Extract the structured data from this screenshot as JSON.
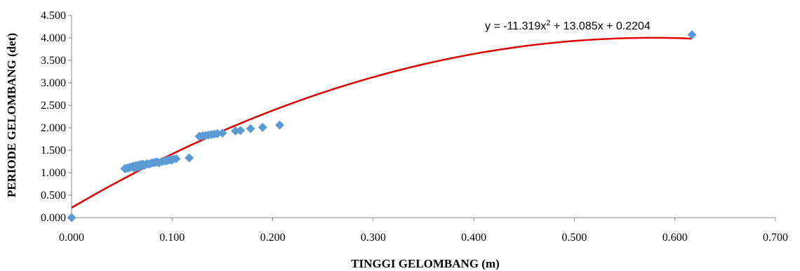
{
  "chart_data": {
    "type": "scatter",
    "xlabel": "TINGGI  GELOMBANG (m)",
    "ylabel": "PERIODE GELOMBANG (det)",
    "xlim": [
      0,
      0.7
    ],
    "ylim": [
      0,
      4.5
    ],
    "x_ticks": [
      0.0,
      0.1,
      0.2,
      0.3,
      0.4,
      0.5,
      0.6,
      0.7
    ],
    "x_tick_labels": [
      "0.000",
      "0.100",
      "0.200",
      "0.300",
      "0.400",
      "0.500",
      "0.600",
      "0.700"
    ],
    "y_ticks": [
      0.0,
      0.5,
      1.0,
      1.5,
      2.0,
      2.5,
      3.0,
      3.5,
      4.0,
      4.5
    ],
    "y_tick_labels": [
      "0.000",
      "0.500",
      "1.000",
      "1.500",
      "2.000",
      "2.500",
      "3.000",
      "3.500",
      "4.000",
      "4.500"
    ],
    "grid": false,
    "series": [
      {
        "marker": "diamond",
        "color": "#5b9bd5",
        "points": [
          [
            0.0,
            0.0
          ],
          [
            0.053,
            1.09
          ],
          [
            0.055,
            1.1
          ],
          [
            0.057,
            1.11
          ],
          [
            0.058,
            1.12
          ],
          [
            0.06,
            1.13
          ],
          [
            0.061,
            1.14
          ],
          [
            0.062,
            1.11
          ],
          [
            0.063,
            1.15
          ],
          [
            0.064,
            1.12
          ],
          [
            0.065,
            1.16
          ],
          [
            0.066,
            1.13
          ],
          [
            0.067,
            1.17
          ],
          [
            0.068,
            1.14
          ],
          [
            0.069,
            1.18
          ],
          [
            0.07,
            1.15
          ],
          [
            0.071,
            1.19
          ],
          [
            0.073,
            1.17
          ],
          [
            0.075,
            1.2
          ],
          [
            0.077,
            1.19
          ],
          [
            0.079,
            1.21
          ],
          [
            0.081,
            1.22
          ],
          [
            0.083,
            1.23
          ],
          [
            0.085,
            1.24
          ],
          [
            0.087,
            1.22
          ],
          [
            0.09,
            1.25
          ],
          [
            0.093,
            1.26
          ],
          [
            0.095,
            1.27
          ],
          [
            0.097,
            1.29
          ],
          [
            0.099,
            1.28
          ],
          [
            0.101,
            1.3
          ],
          [
            0.104,
            1.31
          ],
          [
            0.117,
            1.33
          ],
          [
            0.127,
            1.81
          ],
          [
            0.13,
            1.82
          ],
          [
            0.133,
            1.83
          ],
          [
            0.136,
            1.84
          ],
          [
            0.139,
            1.85
          ],
          [
            0.142,
            1.86
          ],
          [
            0.145,
            1.87
          ],
          [
            0.15,
            1.88
          ],
          [
            0.163,
            1.93
          ],
          [
            0.168,
            1.94
          ],
          [
            0.178,
            1.98
          ],
          [
            0.19,
            2.01
          ],
          [
            0.207,
            2.06
          ],
          [
            0.617,
            4.07
          ]
        ]
      }
    ],
    "trendline": {
      "type": "polynomial",
      "color": "#e00000",
      "coefficients": [
        -11.319,
        13.085,
        0.2204
      ],
      "x_range": [
        0,
        0.617
      ]
    },
    "annotations": [
      {
        "text": "y = -11.319x² + 13.085x + 0.2204"
      }
    ]
  }
}
